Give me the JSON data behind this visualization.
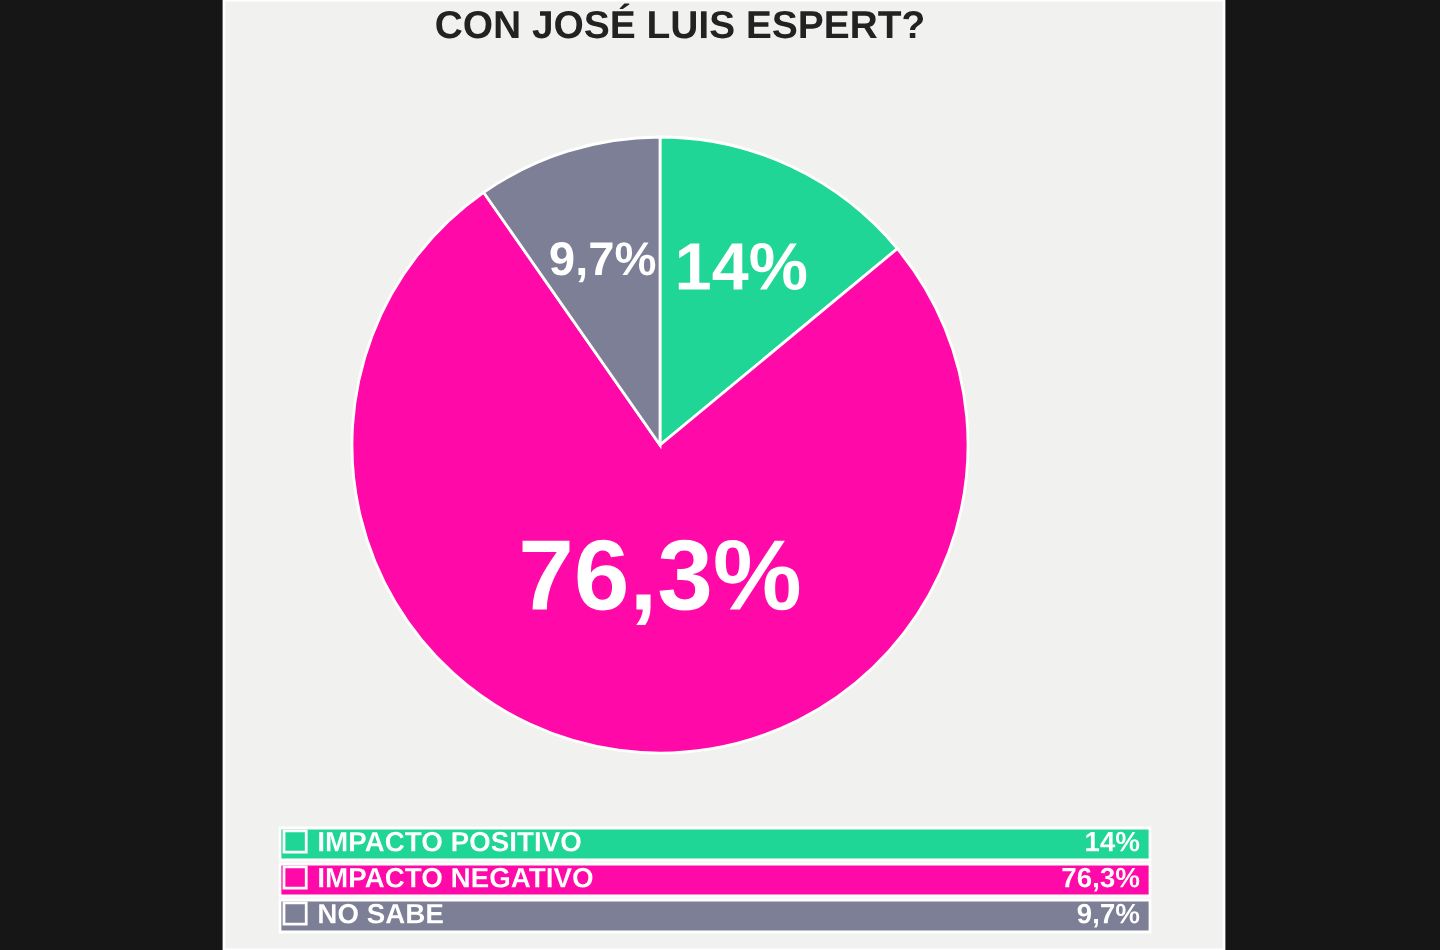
{
  "chart_data": {
    "type": "pie",
    "title": "CON JOSÉ LUIS ESPERT?",
    "categories": [
      "IMPACTO POSITIVO",
      "IMPACTO NEGATIVO",
      "NO SABE"
    ],
    "values": [
      14,
      76.3,
      9.7
    ],
    "value_labels": [
      "14%",
      "76,3%",
      "9,7%"
    ],
    "colors": [
      "#1fd696",
      "#ff0aa9",
      "#7d7f96"
    ],
    "legend": "bottom"
  }
}
